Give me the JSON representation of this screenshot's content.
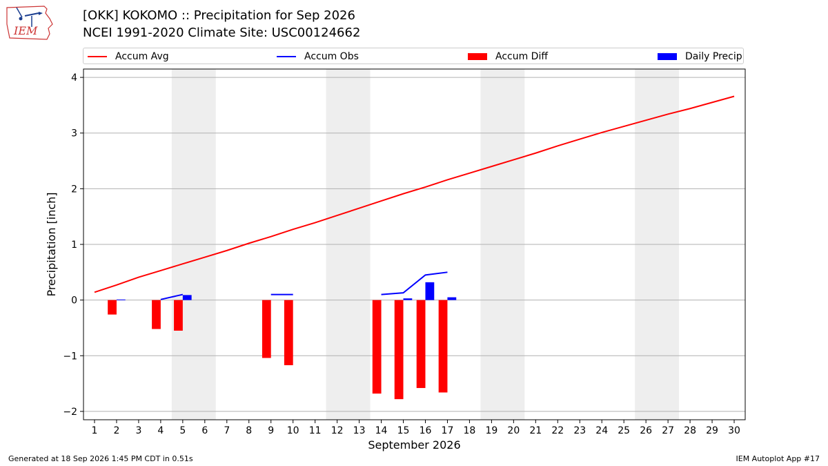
{
  "header": {
    "logo_text": "IEM",
    "title_line1": "[OKK] KOKOMO :: Precipitation for Sep 2026",
    "title_line2": "NCEI 1991-2020 Climate Site: USC00124662"
  },
  "legend": {
    "accum_avg": {
      "label": "Accum Avg",
      "color": "#ff0000"
    },
    "accum_obs": {
      "label": "Accum Obs",
      "color": "#0000ff"
    },
    "accum_diff": {
      "label": "Accum Diff",
      "color": "#ff0000"
    },
    "daily_precip": {
      "label": "Daily Precip",
      "color": "#0000ff"
    }
  },
  "footer": {
    "generated": "Generated at 18 Sep 2026 1:45 PM CDT in 0.51s",
    "app": "IEM Autoplot App #17"
  },
  "chart_data": {
    "type": "bar",
    "xlabel": "September 2026",
    "ylabel": "Precipitation [inch]",
    "xlim": [
      0.5,
      30.5
    ],
    "ylim": [
      -2.15,
      4.15
    ],
    "x_ticks": [
      1,
      2,
      3,
      4,
      5,
      6,
      7,
      8,
      9,
      10,
      11,
      12,
      13,
      14,
      15,
      16,
      17,
      18,
      19,
      20,
      21,
      22,
      23,
      24,
      25,
      26,
      27,
      28,
      29,
      30
    ],
    "y_ticks": [
      -2,
      -1,
      0,
      1,
      2,
      3,
      4
    ],
    "weekend_shading": [
      [
        4.5,
        6.5
      ],
      [
        11.5,
        13.5
      ],
      [
        18.5,
        20.5
      ],
      [
        25.5,
        27.5
      ]
    ],
    "weekend_color": "#eeeeee",
    "grid": "horizontal",
    "accum_avg": {
      "x": [
        1,
        2,
        3,
        4,
        5,
        6,
        7,
        8,
        9,
        10,
        11,
        12,
        13,
        14,
        15,
        16,
        17,
        18,
        19,
        20,
        21,
        22,
        23,
        24,
        25,
        26,
        27,
        28,
        29,
        30
      ],
      "values": [
        0.14,
        0.27,
        0.41,
        0.53,
        0.65,
        0.77,
        0.89,
        1.02,
        1.14,
        1.27,
        1.39,
        1.52,
        1.65,
        1.78,
        1.91,
        2.03,
        2.16,
        2.28,
        2.4,
        2.52,
        2.64,
        2.77,
        2.89,
        3.01,
        3.12,
        3.23,
        3.34,
        3.44,
        3.55,
        3.66
      ]
    },
    "accum_obs": {
      "x": [
        2,
        3,
        4,
        5,
        6,
        7,
        8,
        9,
        10,
        11,
        12,
        13,
        14,
        15,
        16,
        17
      ],
      "values": [
        0.01,
        null,
        0.01,
        0.1,
        null,
        null,
        null,
        0.1,
        0.1,
        null,
        null,
        null,
        0.1,
        0.13,
        0.45,
        0.5
      ]
    },
    "accum_diff": {
      "x": [
        2,
        4,
        5,
        9,
        10,
        14,
        15,
        16,
        17
      ],
      "values": [
        -0.26,
        -0.52,
        -0.55,
        -1.04,
        -1.17,
        -1.68,
        -1.78,
        -1.58,
        -1.66
      ]
    },
    "daily_precip": {
      "x": [
        2,
        5,
        15,
        16,
        17
      ],
      "values": [
        0.01,
        0.09,
        0.03,
        0.32,
        0.05
      ]
    }
  }
}
